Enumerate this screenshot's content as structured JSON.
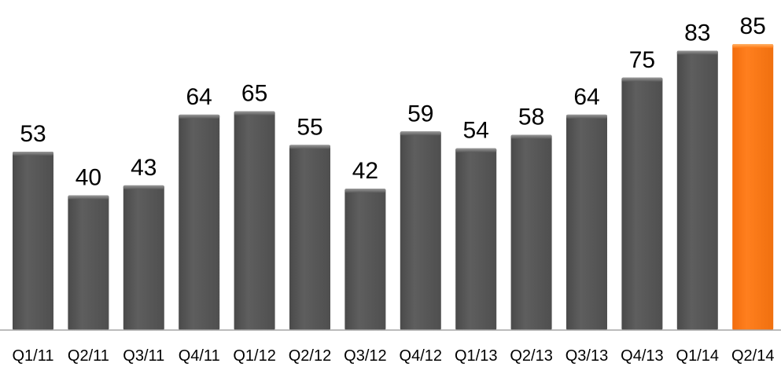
{
  "chart_data": {
    "type": "bar",
    "categories": [
      "Q1/11",
      "Q2/11",
      "Q3/11",
      "Q4/11",
      "Q1/12",
      "Q2/12",
      "Q3/12",
      "Q4/12",
      "Q1/13",
      "Q2/13",
      "Q3/13",
      "Q4/13",
      "Q1/14",
      "Q2/14"
    ],
    "values": [
      53,
      40,
      43,
      64,
      65,
      55,
      42,
      59,
      54,
      58,
      64,
      75,
      83,
      85
    ],
    "highlight_index": 13,
    "colors": {
      "bar": "#595959",
      "bar_highlight": "#ff7a14",
      "baseline": "#a6a6a6",
      "text": "#000000"
    },
    "title": "",
    "xlabel": "",
    "ylabel": "",
    "ylim": [
      0,
      85
    ],
    "grid": false,
    "legend": "none"
  }
}
